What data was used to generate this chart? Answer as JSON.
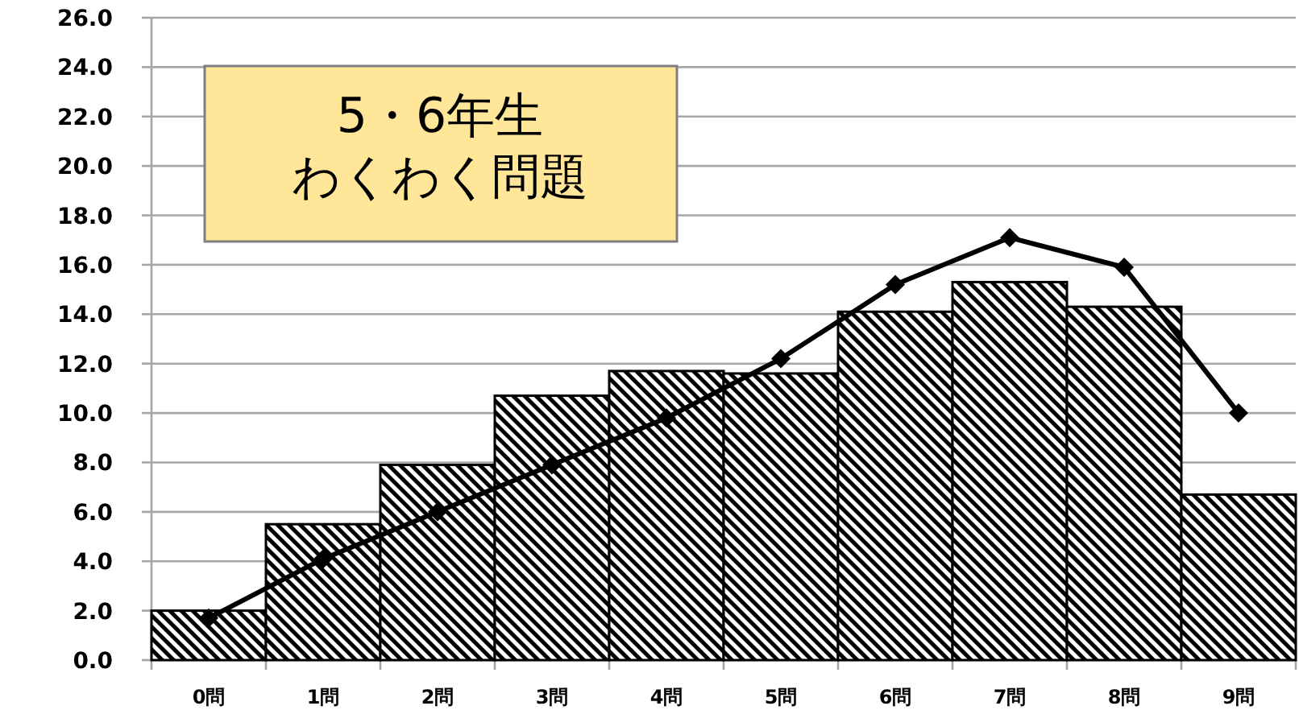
{
  "chart_data": {
    "type": "bar",
    "title": "5・6年生",
    "subtitle": "わくわく問題",
    "categories": [
      "0問",
      "1問",
      "2問",
      "3問",
      "4問",
      "5問",
      "6問",
      "7問",
      "8問",
      "9問"
    ],
    "series": [
      {
        "color": "#000000",
        "values": [
          2.0,
          5.5,
          7.9,
          10.7,
          11.7,
          11.6,
          14.1,
          15.3,
          14.3,
          6.7
        ]
      },
      {
        "type": "line",
        "color": "#000000",
        "marker": "diamond",
        "values": [
          1.7,
          4.1,
          6.0,
          7.9,
          9.8,
          12.2,
          15.2,
          17.1,
          15.9,
          10.0
        ]
      }
    ],
    "ylim": [
      0,
      26
    ],
    "yticks": [
      {
        "value": 0,
        "label": "0.0"
      },
      {
        "value": 2,
        "label": "2.0"
      },
      {
        "value": 4,
        "label": "4.0"
      },
      {
        "value": 6,
        "label": "6.0"
      },
      {
        "value": 8,
        "label": "8.0"
      },
      {
        "value": 10,
        "label": "10.0"
      },
      {
        "value": 12,
        "label": "12.0"
      },
      {
        "value": 14,
        "label": "14.0"
      },
      {
        "value": 16,
        "label": "16.0"
      },
      {
        "value": 18,
        "label": "18.0"
      },
      {
        "value": 20,
        "label": "20.0"
      },
      {
        "value": 22,
        "label": "22.0"
      },
      {
        "value": 24,
        "label": "24.0"
      },
      {
        "value": 26,
        "label": "26.0"
      }
    ],
    "grid": "y"
  }
}
